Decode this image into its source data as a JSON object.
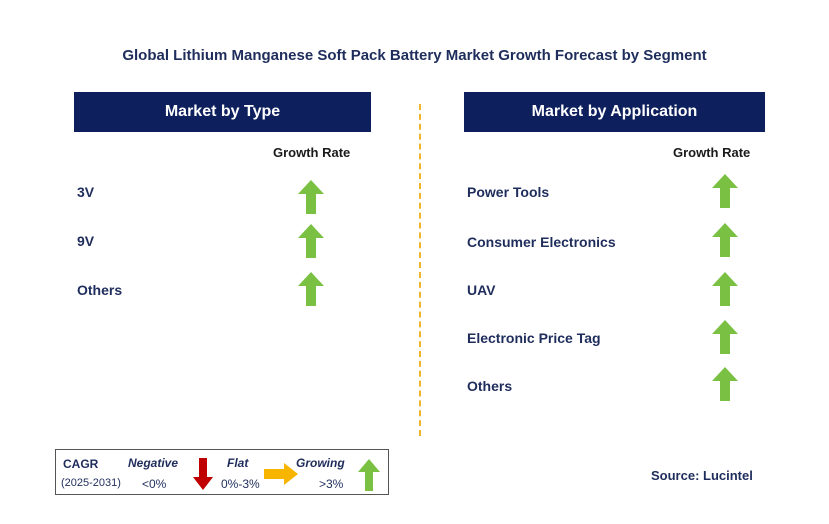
{
  "title": "Global Lithium Manganese Soft Pack Battery Market Growth Forecast by Segment",
  "left_panel": {
    "header": "Market by Type",
    "growth_label": "Growth Rate",
    "rows": [
      {
        "label": "3V",
        "trend": "growing"
      },
      {
        "label": "9V",
        "trend": "growing"
      },
      {
        "label": "Others",
        "trend": "growing"
      }
    ]
  },
  "right_panel": {
    "header": "Market by Application",
    "growth_label": "Growth Rate",
    "rows": [
      {
        "label": "Power Tools",
        "trend": "growing"
      },
      {
        "label": "Consumer Electronics",
        "trend": "growing"
      },
      {
        "label": "UAV",
        "trend": "growing"
      },
      {
        "label": "Electronic Price Tag",
        "trend": "growing"
      },
      {
        "label": "Others",
        "trend": "growing"
      }
    ]
  },
  "legend": {
    "cagr_label": "CAGR",
    "period": "(2025-2031)",
    "negative_label": "Negative",
    "negative_range": "<0%",
    "flat_label": "Flat",
    "flat_range": "0%-3%",
    "growing_label": "Growing",
    "growing_range": ">3%"
  },
  "source": "Source: Lucintel",
  "colors": {
    "header_bg": "#0d1f5c",
    "growing": "#7ac143",
    "negative": "#c00000",
    "flat": "#f7b500",
    "divider": "#f0b428"
  }
}
